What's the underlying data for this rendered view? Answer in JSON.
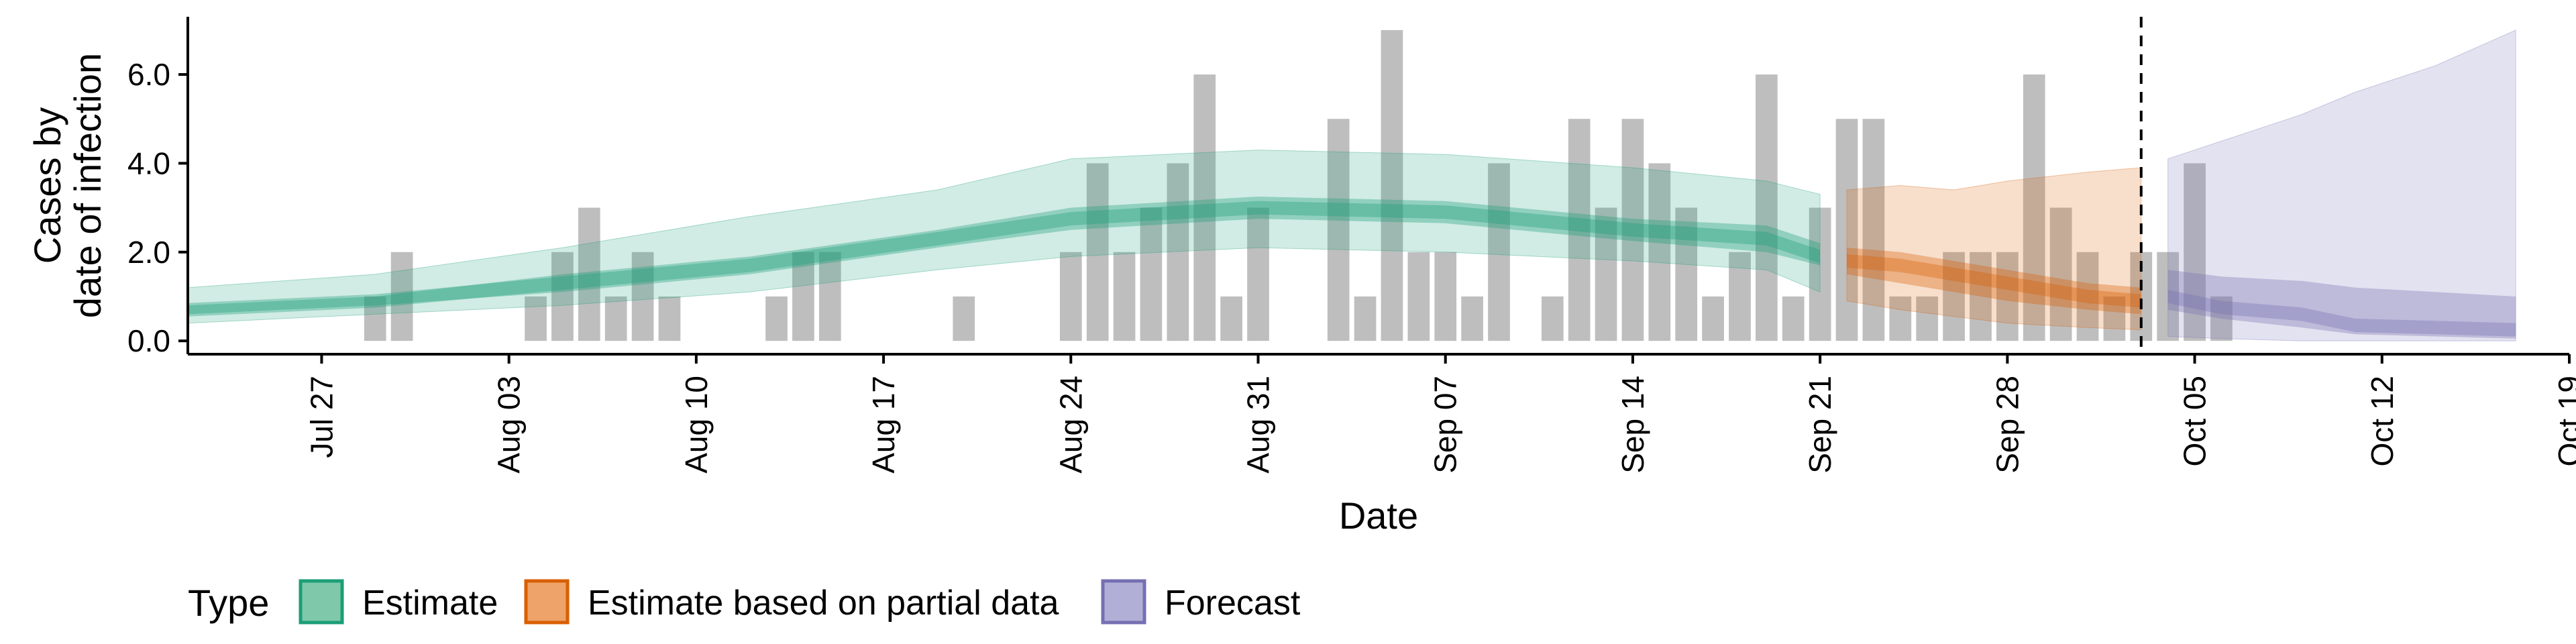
{
  "chart_data": {
    "type": "bar",
    "xlabel": "Date",
    "ylabel_lines": [
      "Cases by",
      "date of infection"
    ],
    "x_domain": [
      "2020-07-22",
      "2020-10-19"
    ],
    "ylim": [
      -0.3,
      7.3
    ],
    "y_ticks": [
      0,
      2,
      4,
      6
    ],
    "y_tick_labels": [
      "0.0",
      "2.0",
      "4.0",
      "6.0"
    ],
    "x_ticks": [
      "2020-07-27",
      "2020-08-03",
      "2020-08-10",
      "2020-08-17",
      "2020-08-24",
      "2020-08-31",
      "2020-09-07",
      "2020-09-14",
      "2020-09-21",
      "2020-09-28",
      "2020-10-05",
      "2020-10-12",
      "2020-10-19"
    ],
    "x_tick_labels": [
      "Jul 27",
      "Aug 03",
      "Aug 10",
      "Aug 17",
      "Aug 24",
      "Aug 31",
      "Sep 07",
      "Sep 14",
      "Sep 21",
      "Sep 28",
      "Oct 05",
      "Oct 12",
      "Oct 19"
    ],
    "vline_date": "2020-10-03",
    "bars_start": "2020-07-29",
    "bar_values": [
      1,
      2,
      0,
      0,
      0,
      0,
      1,
      2,
      3,
      1,
      2,
      1,
      0,
      0,
      0,
      1,
      2,
      2,
      0,
      0,
      0,
      0,
      1,
      0,
      0,
      0,
      2,
      4,
      2,
      3,
      4,
      6,
      1,
      3,
      0,
      0,
      5,
      1,
      7,
      2,
      2,
      1,
      4,
      0,
      1,
      5,
      3,
      5,
      4,
      3,
      1,
      2,
      6,
      1,
      3,
      5,
      5,
      1,
      1,
      2,
      2,
      2,
      6,
      3,
      2,
      1,
      2,
      2,
      4,
      1
    ],
    "bar_color": "#bebebe",
    "legend": {
      "title": "Type",
      "items": [
        {
          "label": "Estimate",
          "fill": "#7fc8aa",
          "stroke": "#1b9e77"
        },
        {
          "label": "Estimate based on partial data",
          "fill": "#eea36a",
          "stroke": "#d95f02"
        },
        {
          "label": "Forecast",
          "fill": "#b2afd6",
          "stroke": "#7570b3"
        }
      ]
    },
    "series": [
      {
        "type": "Estimate",
        "color": "#1b9e77",
        "dates": [
          "2020-07-22",
          "2020-07-29",
          "2020-08-05",
          "2020-08-12",
          "2020-08-19",
          "2020-08-24",
          "2020-08-31",
          "2020-09-07",
          "2020-09-14",
          "2020-09-19",
          "2020-09-21"
        ],
        "median": [
          0.7,
          0.9,
          1.3,
          1.7,
          2.3,
          2.75,
          3.0,
          2.9,
          2.5,
          2.3,
          1.9
        ],
        "low50": [
          0.6,
          0.8,
          1.1,
          1.5,
          2.1,
          2.5,
          2.75,
          2.65,
          2.25,
          2.0,
          1.7
        ],
        "high50": [
          0.8,
          1.0,
          1.5,
          1.9,
          2.5,
          3.0,
          3.25,
          3.15,
          2.75,
          2.6,
          2.2
        ],
        "low90": [
          0.4,
          0.6,
          0.8,
          1.1,
          1.6,
          1.9,
          2.1,
          2.0,
          1.8,
          1.6,
          1.1
        ],
        "high90": [
          1.2,
          1.5,
          2.1,
          2.8,
          3.4,
          4.1,
          4.3,
          4.2,
          3.9,
          3.6,
          3.3
        ]
      },
      {
        "type": "Estimate based on partial data",
        "color": "#d95f02",
        "dates": [
          "2020-09-22",
          "2020-09-24",
          "2020-09-26",
          "2020-09-28",
          "2020-10-01",
          "2020-10-03"
        ],
        "median": [
          1.8,
          1.7,
          1.5,
          1.3,
          1.0,
          0.9
        ],
        "low50": [
          1.5,
          1.3,
          1.1,
          0.9,
          0.7,
          0.6
        ],
        "high50": [
          2.1,
          2.0,
          1.8,
          1.6,
          1.3,
          1.2
        ],
        "low90": [
          0.9,
          0.7,
          0.55,
          0.4,
          0.3,
          0.25
        ],
        "high90": [
          3.4,
          3.5,
          3.4,
          3.6,
          3.8,
          3.9
        ]
      },
      {
        "type": "Forecast",
        "color": "#7570b3",
        "dates": [
          "2020-10-04",
          "2020-10-06",
          "2020-10-09",
          "2020-10-11",
          "2020-10-14",
          "2020-10-17"
        ],
        "median": [
          1.0,
          0.75,
          0.6,
          0.35,
          0.3,
          0.25
        ],
        "low50": [
          0.7,
          0.5,
          0.3,
          0.15,
          0.1,
          0.05
        ],
        "high50": [
          1.6,
          1.45,
          1.35,
          1.2,
          1.1,
          1.0
        ],
        "low90": [
          0.1,
          0.05,
          0.0,
          0.0,
          0.0,
          0.0
        ],
        "high90": [
          4.1,
          4.5,
          5.1,
          5.6,
          6.2,
          7.0
        ]
      }
    ]
  }
}
